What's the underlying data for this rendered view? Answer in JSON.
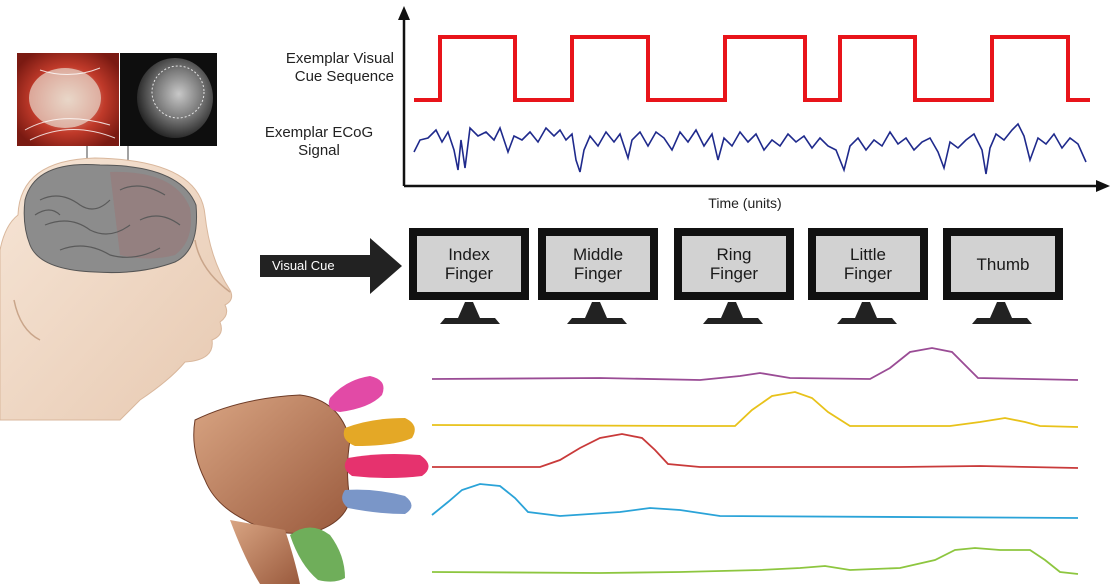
{
  "labels": {
    "visual_cue_sequence": "Exemplar Visual\nCue Sequence",
    "ecog_signal": "Exemplar ECoG\nSignal",
    "time_axis": "Time (units)",
    "visual_cue_arrow": "Visual Cue"
  },
  "monitors": [
    {
      "label": "Index\nFinger"
    },
    {
      "label": "Middle\nFinger"
    },
    {
      "label": "Ring\nFinger"
    },
    {
      "label": "Little\nFinger"
    },
    {
      "label": "Thumb"
    }
  ],
  "colors": {
    "cue_sequence": "#e8141a",
    "ecog_signal": "#1f2a8c",
    "trace_little": "#9a4c95",
    "trace_ring": "#e8c21a",
    "trace_middle": "#c93a3a",
    "trace_index": "#2aa3d8",
    "trace_thumb": "#8dc63f"
  }
}
